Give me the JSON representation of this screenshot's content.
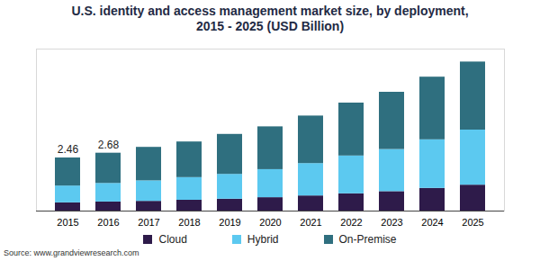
{
  "chart_data": {
    "type": "bar",
    "title": "U.S. identity and access management market size, by deployment,\n2015 - 2025 (USD Billion)",
    "categories": [
      "2015",
      "2016",
      "2017",
      "2018",
      "2019",
      "2020",
      "2021",
      "2022",
      "2023",
      "2024",
      "2025"
    ],
    "series": [
      {
        "name": "Cloud",
        "color": "#2e1b4a",
        "values": [
          0.38,
          0.42,
          0.45,
          0.5,
          0.55,
          0.62,
          0.7,
          0.8,
          0.9,
          1.05,
          1.2
        ]
      },
      {
        "name": "Hybrid",
        "color": "#5cc9f0",
        "values": [
          0.78,
          0.86,
          0.95,
          1.05,
          1.15,
          1.3,
          1.5,
          1.75,
          1.95,
          2.25,
          2.55
        ]
      },
      {
        "name": "On-Premise",
        "color": "#2f6f7f",
        "values": [
          1.3,
          1.4,
          1.55,
          1.65,
          1.85,
          1.98,
          2.2,
          2.45,
          2.65,
          2.9,
          3.15
        ]
      }
    ],
    "stacked": true,
    "ylim": [
      0,
      7.5
    ],
    "yticks": [],
    "tick_labels": "x",
    "legend": "bottom",
    "annotations": [
      {
        "category": "2015",
        "text": "2.46"
      },
      {
        "category": "2016",
        "text": "2.68"
      }
    ],
    "source": "Source: www.grandviewresearch.com"
  }
}
